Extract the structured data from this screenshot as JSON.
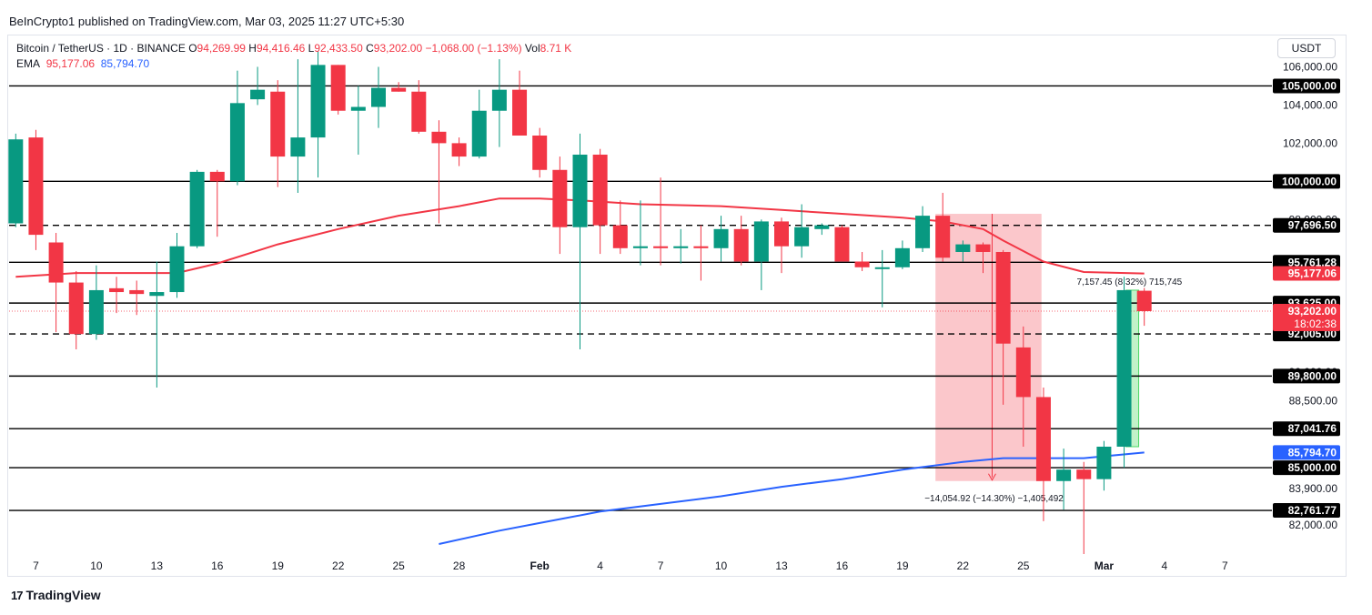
{
  "publish_line": "BeInCrypto1 published on TradingView.com, Mar 03, 2025 11:27 UTC+5:30",
  "legend": {
    "symbol": "Bitcoin / TetherUS · 1D · BINANCE",
    "o_label": "O",
    "o_value": "94,269.99",
    "h_label": "H",
    "h_value": "94,416.46",
    "l_label": "L",
    "l_value": "92,433.50",
    "c_label": "C",
    "c_value": "93,202.00",
    "change": "−1,068.00 (−1.13%)",
    "vol_label": "Vol",
    "vol_value": "8.71 K",
    "ema_label": "EMA",
    "ema1": "95,177.06",
    "ema2": "85,794.70"
  },
  "currency": "USDT",
  "footer_brand": "TradingView",
  "colors": {
    "up": "#089981",
    "down": "#f23645",
    "ema1": "#f23645",
    "ema2": "#2962ff",
    "grid": "#000000"
  },
  "chart_data": {
    "type": "candlestick",
    "x_tick_labels": [
      {
        "day": 1,
        "label": "7"
      },
      {
        "day": 4,
        "label": "10"
      },
      {
        "day": 7,
        "label": "13"
      },
      {
        "day": 10,
        "label": "16"
      },
      {
        "day": 13,
        "label": "19"
      },
      {
        "day": 16,
        "label": "22"
      },
      {
        "day": 19,
        "label": "25"
      },
      {
        "day": 22,
        "label": "28"
      },
      {
        "day": 26,
        "label": "Feb"
      },
      {
        "day": 29,
        "label": "4"
      },
      {
        "day": 32,
        "label": "7"
      },
      {
        "day": 35,
        "label": "10"
      },
      {
        "day": 38,
        "label": "13"
      },
      {
        "day": 41,
        "label": "16"
      },
      {
        "day": 44,
        "label": "19"
      },
      {
        "day": 47,
        "label": "22"
      },
      {
        "day": 50,
        "label": "25"
      },
      {
        "day": 54,
        "label": "Mar"
      },
      {
        "day": 57,
        "label": "4"
      },
      {
        "day": 60,
        "label": "7"
      }
    ],
    "y_axis_labels": [
      "106,000.00",
      "104,000.00",
      "102,000.00",
      "98,000.00",
      "90,000.00",
      "88,500.00",
      "83,900.00",
      "82,000.00"
    ],
    "ylim": [
      81000,
      107500
    ],
    "candles": [
      {
        "o": 97800,
        "h": 102500,
        "l": 97600,
        "c": 102200
      },
      {
        "o": 102300,
        "h": 102700,
        "l": 96400,
        "c": 97200
      },
      {
        "o": 96800,
        "h": 97300,
        "l": 92100,
        "c": 94700
      },
      {
        "o": 94700,
        "h": 95300,
        "l": 91200,
        "c": 92000
      },
      {
        "o": 92000,
        "h": 95600,
        "l": 91700,
        "c": 94300
      },
      {
        "o": 94400,
        "h": 95000,
        "l": 93100,
        "c": 94200
      },
      {
        "o": 94300,
        "h": 94800,
        "l": 93000,
        "c": 94100
      },
      {
        "o": 94000,
        "h": 95800,
        "l": 89200,
        "c": 94200
      },
      {
        "o": 94200,
        "h": 97300,
        "l": 93900,
        "c": 96600
      },
      {
        "o": 96600,
        "h": 100600,
        "l": 96500,
        "c": 100500
      },
      {
        "o": 100500,
        "h": 100600,
        "l": 97100,
        "c": 100000
      },
      {
        "o": 100000,
        "h": 105800,
        "l": 99800,
        "c": 104100
      },
      {
        "o": 104300,
        "h": 106000,
        "l": 104000,
        "c": 104800
      },
      {
        "o": 104700,
        "h": 105300,
        "l": 99700,
        "c": 101300
      },
      {
        "o": 101300,
        "h": 106400,
        "l": 99400,
        "c": 102300
      },
      {
        "o": 102300,
        "h": 106800,
        "l": 100200,
        "c": 106100
      },
      {
        "o": 106100,
        "h": 106100,
        "l": 103500,
        "c": 103700
      },
      {
        "o": 103700,
        "h": 105000,
        "l": 101400,
        "c": 103900
      },
      {
        "o": 103900,
        "h": 106000,
        "l": 102800,
        "c": 104900
      },
      {
        "o": 104900,
        "h": 105200,
        "l": 104700,
        "c": 104700
      },
      {
        "o": 104700,
        "h": 105300,
        "l": 102500,
        "c": 102600
      },
      {
        "o": 102600,
        "h": 103200,
        "l": 97800,
        "c": 102000
      },
      {
        "o": 102000,
        "h": 102300,
        "l": 100800,
        "c": 101300
      },
      {
        "o": 101300,
        "h": 104800,
        "l": 101200,
        "c": 103700
      },
      {
        "o": 103700,
        "h": 106400,
        "l": 101800,
        "c": 104800
      },
      {
        "o": 104800,
        "h": 105800,
        "l": 102400,
        "c": 102400
      },
      {
        "o": 102400,
        "h": 102800,
        "l": 100200,
        "c": 100600
      },
      {
        "o": 100600,
        "h": 101300,
        "l": 96200,
        "c": 97600
      },
      {
        "o": 97600,
        "h": 102500,
        "l": 91200,
        "c": 101400
      },
      {
        "o": 101400,
        "h": 101700,
        "l": 96200,
        "c": 97700
      },
      {
        "o": 97700,
        "h": 99000,
        "l": 96200,
        "c": 96500
      },
      {
        "o": 96500,
        "h": 99000,
        "l": 95600,
        "c": 96600
      },
      {
        "o": 96600,
        "h": 100200,
        "l": 95600,
        "c": 96500
      },
      {
        "o": 96500,
        "h": 97500,
        "l": 95700,
        "c": 96600
      },
      {
        "o": 96600,
        "h": 97700,
        "l": 94800,
        "c": 96500
      },
      {
        "o": 96500,
        "h": 98200,
        "l": 95800,
        "c": 97500
      },
      {
        "o": 97500,
        "h": 98200,
        "l": 95600,
        "c": 95800
      },
      {
        "o": 95800,
        "h": 98000,
        "l": 94300,
        "c": 97900
      },
      {
        "o": 97900,
        "h": 98100,
        "l": 95200,
        "c": 96600
      },
      {
        "o": 96600,
        "h": 98800,
        "l": 96000,
        "c": 97600
      },
      {
        "o": 97500,
        "h": 97800,
        "l": 97200,
        "c": 97700
      },
      {
        "o": 97600,
        "h": 97700,
        "l": 95900,
        "c": 95800
      },
      {
        "o": 95800,
        "h": 96300,
        "l": 95300,
        "c": 95500
      },
      {
        "o": 95500,
        "h": 96400,
        "l": 93400,
        "c": 95500
      },
      {
        "o": 95500,
        "h": 96900,
        "l": 95400,
        "c": 96500
      },
      {
        "o": 96500,
        "h": 98700,
        "l": 96300,
        "c": 98200
      },
      {
        "o": 98200,
        "h": 99400,
        "l": 95800,
        "c": 96000
      },
      {
        "o": 96300,
        "h": 96900,
        "l": 95800,
        "c": 96700
      },
      {
        "o": 96700,
        "h": 96800,
        "l": 95200,
        "c": 96300
      },
      {
        "o": 96300,
        "h": 96400,
        "l": 88300,
        "c": 91500
      },
      {
        "o": 91300,
        "h": 92400,
        "l": 86100,
        "c": 88700
      },
      {
        "o": 88700,
        "h": 89200,
        "l": 82200,
        "c": 84300
      },
      {
        "o": 84300,
        "h": 86000,
        "l": 82800,
        "c": 84900
      },
      {
        "o": 84900,
        "h": 85300,
        "l": 78200,
        "c": 84400
      },
      {
        "o": 84400,
        "h": 86400,
        "l": 83800,
        "c": 86100
      },
      {
        "o": 86100,
        "h": 95000,
        "l": 85000,
        "c": 94300
      },
      {
        "o": 94270,
        "h": 94416,
        "l": 92434,
        "c": 93202
      }
    ],
    "ema_fast": {
      "name": "EMA",
      "points": [
        [
          0,
          95000
        ],
        [
          3,
          95200
        ],
        [
          8,
          95200
        ],
        [
          10,
          95700
        ],
        [
          13,
          96700
        ],
        [
          16,
          97500
        ],
        [
          19,
          98200
        ],
        [
          22,
          98700
        ],
        [
          24,
          99100
        ],
        [
          26,
          99100
        ],
        [
          28,
          99000
        ],
        [
          31,
          98800
        ],
        [
          35,
          98700
        ],
        [
          38,
          98500
        ],
        [
          41,
          98300
        ],
        [
          44,
          98100
        ],
        [
          46,
          97900
        ],
        [
          48,
          97500
        ],
        [
          49,
          96900
        ],
        [
          51,
          95800
        ],
        [
          53,
          95250
        ],
        [
          56,
          95177
        ]
      ]
    },
    "ema_slow": {
      "name": "EMA",
      "points": [
        [
          21,
          81000
        ],
        [
          24,
          81700
        ],
        [
          26,
          82100
        ],
        [
          29,
          82700
        ],
        [
          32,
          83100
        ],
        [
          35,
          83500
        ],
        [
          38,
          84000
        ],
        [
          41,
          84400
        ],
        [
          44,
          84900
        ],
        [
          47,
          85300
        ],
        [
          49,
          85500
        ],
        [
          51,
          85500
        ],
        [
          53,
          85500
        ],
        [
          56,
          85795
        ]
      ]
    },
    "horizontal_levels": [
      {
        "value": 105000,
        "label": "105,000.00",
        "style": "solid"
      },
      {
        "value": 100000,
        "label": "100,000.00",
        "style": "solid"
      },
      {
        "value": 97696.5,
        "label": "97,696.50",
        "style": "dashed"
      },
      {
        "value": 95761.28,
        "label": "95,761.28",
        "style": "solid"
      },
      {
        "value": 93625,
        "label": "93,625.00",
        "style": "solid"
      },
      {
        "value": 92005,
        "label": "92,005.00",
        "style": "dashed"
      },
      {
        "value": 89800,
        "label": "89,800.00",
        "style": "solid"
      },
      {
        "value": 87041.76,
        "label": "87,041.76",
        "style": "solid"
      },
      {
        "value": 85000,
        "label": "85,000.00",
        "style": "solid"
      },
      {
        "value": 82761.77,
        "label": "82,761.77",
        "style": "solid"
      }
    ],
    "price_badges": [
      {
        "value": 95177.06,
        "label": "95,177.06",
        "color": "#f23645"
      },
      {
        "value": 93202,
        "label": "93,202.00",
        "sub": "18:02:38",
        "color": "#f23645"
      },
      {
        "value": 85794.7,
        "label": "85,794.70",
        "color": "#2962ff"
      }
    ],
    "annotations": {
      "drop_box": {
        "day_from": 46,
        "day_to": 50.9,
        "top": 98300,
        "bottom": 84300,
        "text": "−14,054.92 (−14.30%) −1,405,492"
      },
      "rise_box": {
        "day_from": 55,
        "day_to": 55.9,
        "top": 94300,
        "bottom": 86100,
        "text": "7,157.45 (8.32%) 715,745"
      }
    }
  }
}
